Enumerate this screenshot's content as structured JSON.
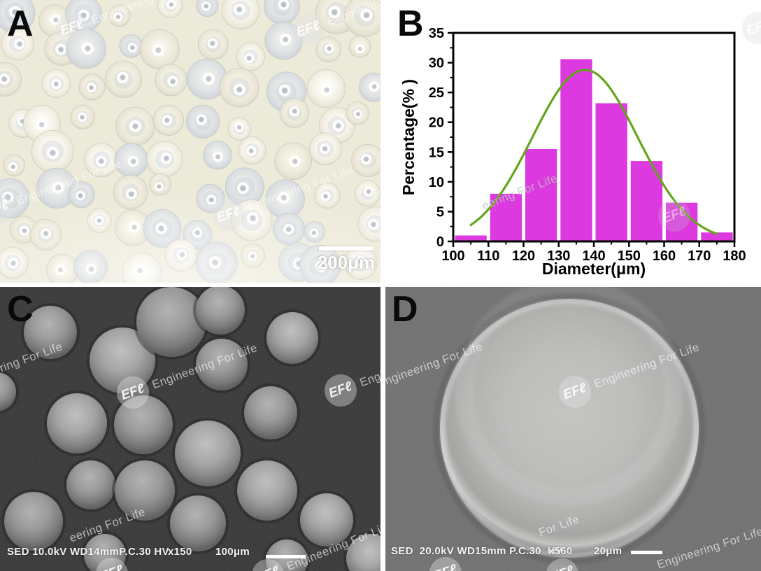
{
  "panels": {
    "a": {
      "label": "A",
      "type": "optical micrograph of microspheres",
      "scale_bar_label": "200μm"
    },
    "b": {
      "label": "B",
      "type": "size distribution histogram"
    },
    "c": {
      "label": "C",
      "type": "SEM micrograph of microspheres",
      "caption_info": "SED 10.0kV WD14mmP.C.30 HV",
      "caption_magnification": "x150",
      "caption_scale": "100μm"
    },
    "d": {
      "label": "D",
      "type": "SEM micrograph of single microsphere",
      "caption_info": "SED  20.0kV WD15mm P.C.30  HV",
      "caption_magnification": "x560",
      "caption_scale": "20μm"
    }
  },
  "watermark": {
    "logo_text": "EFℓ",
    "tagline": "Engineering For Life"
  },
  "chart_data": {
    "type": "bar",
    "title": "",
    "xlabel": "Diameter(μm)",
    "ylabel": "Percentage(% )",
    "xlim": [
      100,
      180
    ],
    "ylim": [
      0,
      35
    ],
    "x_ticks": [
      100,
      110,
      120,
      130,
      140,
      150,
      160,
      170,
      180
    ],
    "y_ticks": [
      0,
      5,
      10,
      15,
      20,
      25,
      30,
      35
    ],
    "bin_edges": [
      100,
      110,
      120,
      130,
      140,
      150,
      160,
      170,
      180
    ],
    "bin_labels": [
      "100-110",
      "110-120",
      "120-130",
      "130-140",
      "140-150",
      "150-160",
      "160-170",
      "170-180"
    ],
    "values": [
      1.0,
      8.0,
      15.5,
      30.6,
      23.2,
      13.5,
      6.5,
      1.5
    ],
    "bar_color": "#dc3ae0",
    "axis_color": "#000000",
    "grid": false,
    "legend": null,
    "fit_curve": {
      "type": "gaussian",
      "peak": 28.8,
      "mean": 137.5,
      "sigma": 15,
      "x_range": [
        105,
        175.5
      ],
      "color": "#64a51c"
    }
  }
}
